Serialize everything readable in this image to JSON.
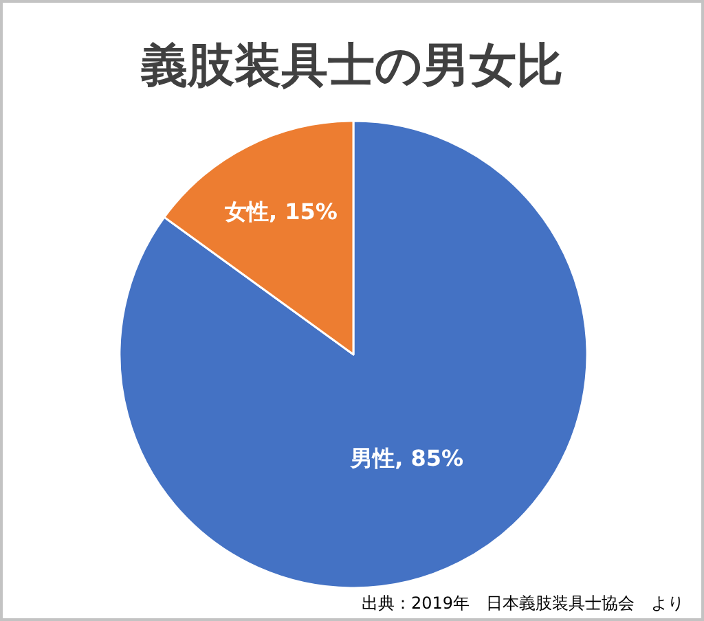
{
  "chart_data": {
    "type": "pie",
    "title": "義肢装具士の男女比",
    "categories": [
      "男性",
      "女性"
    ],
    "values": [
      85,
      15
    ],
    "colors": [
      "#4472c4",
      "#ed7d31"
    ],
    "value_labels": [
      "85%",
      "15%"
    ],
    "legend": false,
    "annotations": [
      "出典：2019年　日本義肢装具士協会　より"
    ]
  }
}
